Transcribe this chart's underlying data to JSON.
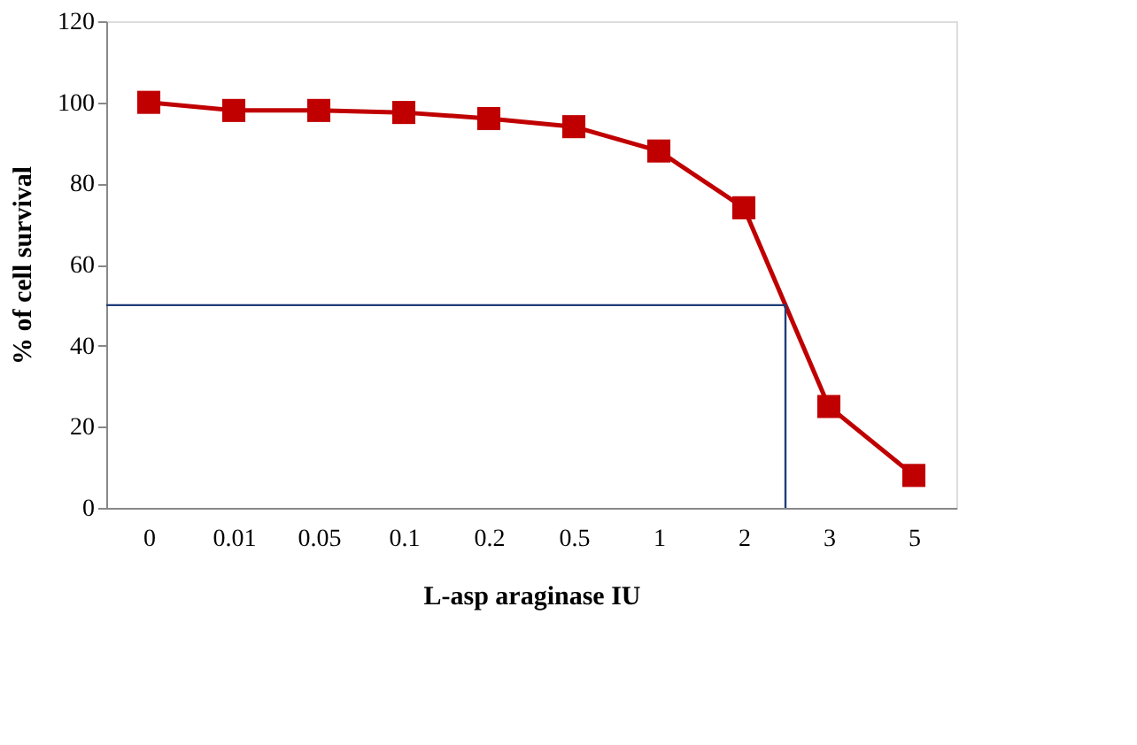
{
  "chart_data": {
    "type": "line",
    "xlabel": "L-asp araginase IU",
    "ylabel": "% of cell survival",
    "categories": [
      "0",
      "0.01",
      "0.05",
      "0.1",
      "0.2",
      "0.5",
      "1",
      "2",
      "3",
      "5"
    ],
    "series": [
      {
        "color": "#c00000",
        "values": [
          100,
          98,
          98,
          97.5,
          96,
          94,
          88,
          74,
          25,
          8
        ]
      }
    ],
    "ylim": [
      0,
      120
    ],
    "yticks": [
      0,
      20,
      40,
      60,
      80,
      100,
      120
    ],
    "marker": "square",
    "line_style": "solid",
    "ref_lines": [
      {
        "axis": "y",
        "value": 50,
        "color": "#1f3d7a"
      }
    ]
  }
}
